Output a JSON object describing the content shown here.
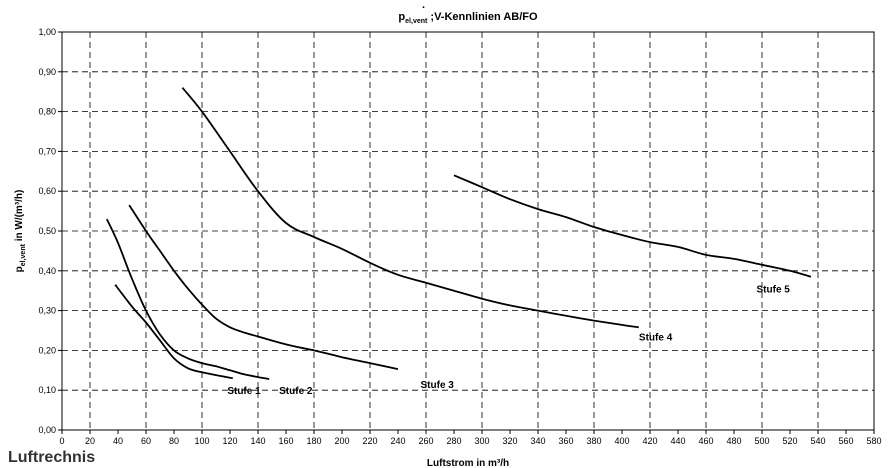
{
  "chart_data": {
    "type": "line",
    "title_main": "p",
    "title_sub": "el,vent",
    "title_rest": " ;V-Kennlinien AB/FO",
    "xlabel": "Luftstrom in m³/h",
    "ylabel_main": "p",
    "ylabel_sub": "el,vent",
    "ylabel_rest": " in W/(m³/h)",
    "xlim": [
      0,
      580
    ],
    "ylim": [
      0,
      1.0
    ],
    "x_ticks": [
      "0",
      "20",
      "40",
      "60",
      "80",
      "100",
      "120",
      "140",
      "160",
      "180",
      "200",
      "220",
      "240",
      "260",
      "280",
      "300",
      "320",
      "340",
      "360",
      "380",
      "400",
      "420",
      "440",
      "460",
      "480",
      "500",
      "520",
      "540",
      "560",
      "580"
    ],
    "y_ticks": [
      "0,00",
      "0,10",
      "0,20",
      "0,30",
      "0,40",
      "0,50",
      "0,60",
      "0,70",
      "0,80",
      "0,90",
      "1,00"
    ],
    "grid": true,
    "series": [
      {
        "name": "Stufe 1",
        "x": [
          38,
          50,
          60,
          70,
          80,
          90,
          100,
          110,
          122
        ],
        "y": [
          0.365,
          0.31,
          0.27,
          0.225,
          0.18,
          0.155,
          0.145,
          0.138,
          0.13
        ]
      },
      {
        "name": "Stufe 2",
        "x": [
          32,
          40,
          50,
          60,
          70,
          80,
          90,
          100,
          110,
          120,
          130,
          140,
          148
        ],
        "y": [
          0.53,
          0.47,
          0.38,
          0.3,
          0.24,
          0.2,
          0.18,
          0.168,
          0.16,
          0.15,
          0.14,
          0.133,
          0.128
        ]
      },
      {
        "name": "Stufe 3",
        "x": [
          48,
          60,
          70,
          80,
          90,
          100,
          110,
          120,
          130,
          140,
          160,
          180,
          200,
          220,
          240
        ],
        "y": [
          0.565,
          0.5,
          0.45,
          0.4,
          0.355,
          0.315,
          0.28,
          0.258,
          0.245,
          0.235,
          0.215,
          0.2,
          0.183,
          0.168,
          0.153
        ]
      },
      {
        "name": "Stufe 4",
        "x": [
          86,
          100,
          120,
          140,
          160,
          180,
          200,
          220,
          240,
          260,
          280,
          300,
          320,
          340,
          360,
          380,
          400,
          412
        ],
        "y": [
          0.86,
          0.8,
          0.7,
          0.6,
          0.52,
          0.485,
          0.455,
          0.42,
          0.39,
          0.37,
          0.35,
          0.33,
          0.313,
          0.3,
          0.287,
          0.275,
          0.264,
          0.258
        ]
      },
      {
        "name": "Stufe 5",
        "x": [
          280,
          300,
          320,
          340,
          360,
          380,
          400,
          420,
          440,
          460,
          480,
          500,
          520,
          535
        ],
        "y": [
          0.64,
          0.61,
          0.58,
          0.555,
          0.535,
          0.51,
          0.49,
          0.472,
          0.46,
          0.44,
          0.43,
          0.415,
          0.4,
          0.385
        ]
      }
    ],
    "series_labels": [
      {
        "text": "Stufe 1",
        "x": 130,
        "y": 0.09
      },
      {
        "text": "Stufe 2",
        "x": 167,
        "y": 0.09
      },
      {
        "text": "Stufe 3",
        "x": 268,
        "y": 0.105
      },
      {
        "text": "Stufe 4",
        "x": 424,
        "y": 0.225
      },
      {
        "text": "Stufe 5",
        "x": 508,
        "y": 0.345
      }
    ]
  },
  "fragment_text": "Luftrechnis"
}
